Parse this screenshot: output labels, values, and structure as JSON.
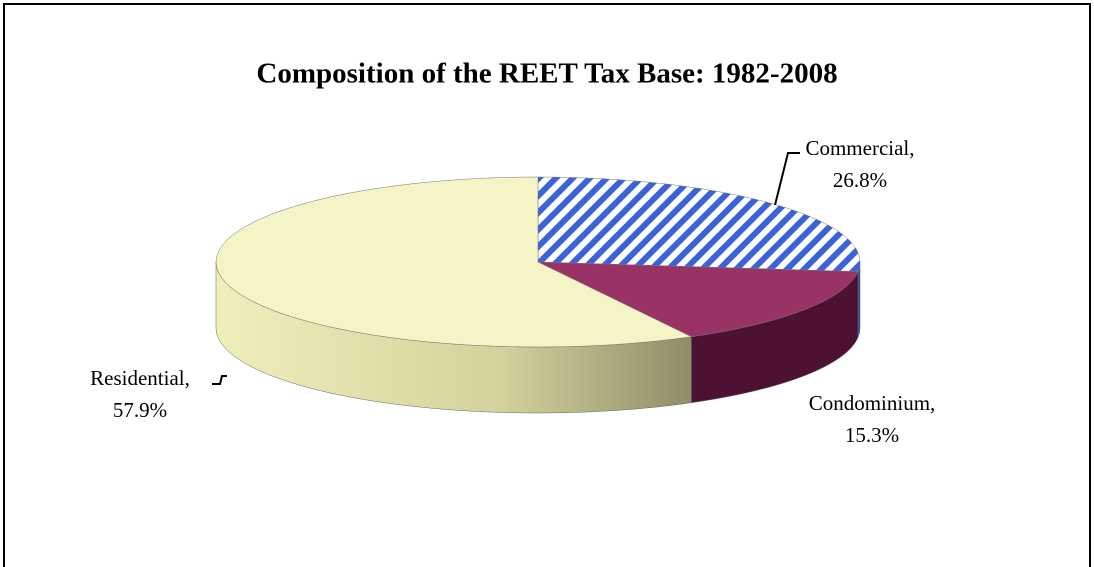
{
  "chart_data": {
    "type": "pie3d",
    "title": "Composition of the REET Tax Base: 1982-2008",
    "categories": [
      "Commercial,",
      "Condominium,",
      "Residential,"
    ],
    "values": [
      26.8,
      15.3,
      57.9
    ],
    "value_labels": [
      "26.8%",
      "15.3%",
      "57.9%"
    ],
    "colors": [
      "#3b63d6",
      "#993366",
      "#f4f4c6"
    ]
  }
}
